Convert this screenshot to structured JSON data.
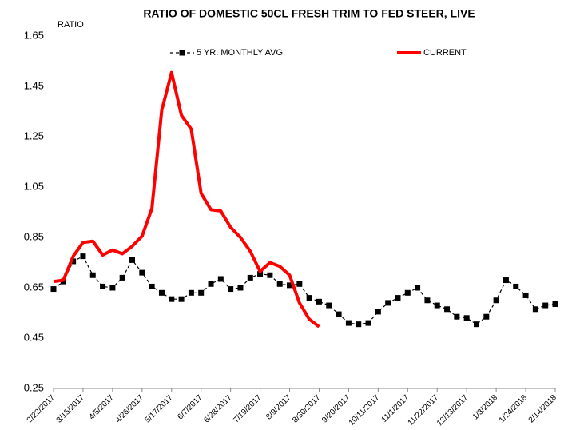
{
  "chart_data": {
    "type": "line",
    "title": "RATIO OF DOMESTIC 50CL FRESH TRIM TO FED STEER, LIVE",
    "y_label": "RATIO",
    "categories": [
      "2/22/2017",
      null,
      null,
      "3/15/2017",
      null,
      null,
      "4/5/2017",
      null,
      null,
      "4/26/2017",
      null,
      null,
      "5/17/2017",
      null,
      null,
      "6/7/2017",
      null,
      null,
      "6/28/2017",
      null,
      null,
      "7/19/2017",
      null,
      null,
      "8/9/2017",
      null,
      null,
      "8/30/2017",
      null,
      null,
      "9/20/2017",
      null,
      null,
      "10/11/2017",
      null,
      null,
      "11/1/2017",
      null,
      null,
      "11/22/2017",
      null,
      null,
      "12/13/2017",
      null,
      null,
      "1/3/2018",
      null,
      null,
      "1/24/2018",
      null,
      null,
      "2/14/2018"
    ],
    "series": [
      {
        "name": "5 YR. MONTHLY AVG.",
        "color": "#000000",
        "dashed": true,
        "marker": "square",
        "values": [
          0.645,
          0.675,
          0.755,
          0.775,
          0.7,
          0.655,
          0.65,
          0.69,
          0.76,
          0.71,
          0.655,
          0.63,
          0.605,
          0.605,
          0.63,
          0.63,
          0.665,
          0.685,
          0.645,
          0.65,
          0.69,
          0.705,
          0.7,
          0.665,
          0.66,
          0.665,
          0.61,
          0.595,
          0.58,
          0.545,
          0.51,
          0.505,
          0.51,
          0.555,
          0.59,
          0.61,
          0.63,
          0.65,
          0.6,
          0.58,
          0.565,
          0.535,
          0.53,
          0.505,
          0.535,
          0.6,
          0.68,
          0.655,
          0.62,
          0.565,
          0.58,
          0.585
        ]
      },
      {
        "name": "CURRENT",
        "color": "#ff0000",
        "dashed": false,
        "marker": null,
        "values": [
          0.675,
          0.68,
          0.775,
          0.83,
          0.835,
          0.78,
          0.8,
          0.785,
          0.815,
          0.855,
          0.965,
          1.355,
          1.505,
          1.335,
          1.28,
          1.025,
          0.96,
          0.955,
          0.89,
          0.85,
          0.795,
          0.715,
          0.75,
          0.735,
          0.7,
          0.59,
          0.525,
          0.495,
          null,
          null,
          null,
          null,
          null,
          null,
          null,
          null,
          null,
          null,
          null,
          null,
          null,
          null,
          null,
          null,
          null,
          null,
          null,
          null,
          null,
          null,
          null,
          null
        ]
      }
    ],
    "ylim": [
      0.25,
      1.65
    ],
    "yticks": [
      0.25,
      0.45,
      0.65,
      0.85,
      1.05,
      1.25,
      1.45,
      1.65
    ],
    "grid": false,
    "legend": "top"
  }
}
